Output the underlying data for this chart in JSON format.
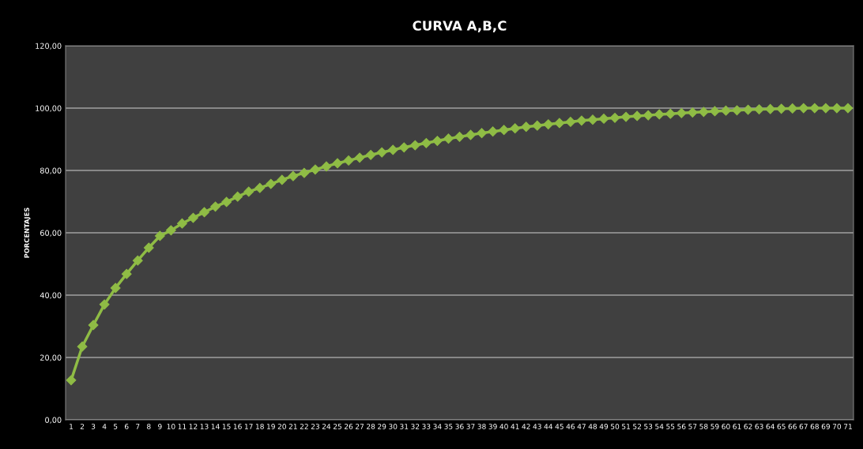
{
  "chart_data": {
    "type": "line",
    "title": "CURVA A,B,C",
    "ylabel": "PORCENTAJES",
    "categories": [
      "1",
      "2",
      "3",
      "4",
      "5",
      "6",
      "7",
      "8",
      "9",
      "10",
      "11",
      "12",
      "13",
      "14",
      "15",
      "16",
      "17",
      "18",
      "19",
      "20",
      "21",
      "22",
      "23",
      "24",
      "25",
      "26",
      "27",
      "28",
      "29",
      "30",
      "31",
      "32",
      "33",
      "34",
      "35",
      "36",
      "37",
      "38",
      "39",
      "40",
      "41",
      "42",
      "43",
      "44",
      "45",
      "46",
      "47",
      "48",
      "49",
      "50",
      "51",
      "52",
      "53",
      "54",
      "55",
      "56",
      "57",
      "58",
      "59",
      "60",
      "61",
      "62",
      "63",
      "64",
      "65",
      "66",
      "67",
      "68",
      "69",
      "70",
      "71"
    ],
    "series": [
      {
        "color": "#8fbc45",
        "values": [
          12.7,
          23.5,
          30.4,
          37.0,
          42.3,
          46.8,
          51.1,
          55.2,
          59.0,
          60.8,
          63.0,
          64.8,
          66.6,
          68.4,
          69.9,
          71.6,
          73.2,
          74.4,
          75.7,
          77.0,
          78.2,
          79.2,
          80.3,
          81.3,
          82.3,
          83.2,
          84.1,
          85.0,
          85.8,
          86.6,
          87.4,
          88.1,
          88.8,
          89.5,
          90.2,
          90.8,
          91.4,
          92.0,
          92.5,
          93.0,
          93.5,
          94.0,
          94.4,
          94.8,
          95.2,
          95.6,
          96.0,
          96.3,
          96.6,
          96.9,
          97.2,
          97.5,
          97.7,
          98.0,
          98.2,
          98.4,
          98.6,
          98.8,
          99.0,
          99.2,
          99.3,
          99.5,
          99.6,
          99.7,
          99.8,
          99.9,
          100.0,
          100.0,
          100.0,
          100.0,
          100.0
        ]
      }
    ],
    "ylim": [
      0,
      120
    ],
    "yticks": [
      {
        "value": 0,
        "label": "0,00"
      },
      {
        "value": 20,
        "label": "20,00"
      },
      {
        "value": 40,
        "label": "40,00"
      },
      {
        "value": 60,
        "label": "60,00"
      },
      {
        "value": 80,
        "label": "80,00"
      },
      {
        "value": 100,
        "label": "100,00"
      },
      {
        "value": 120,
        "label": "120,00"
      }
    ],
    "grid": "y",
    "marker": "diamond",
    "line_style": "solid",
    "legend": false
  }
}
